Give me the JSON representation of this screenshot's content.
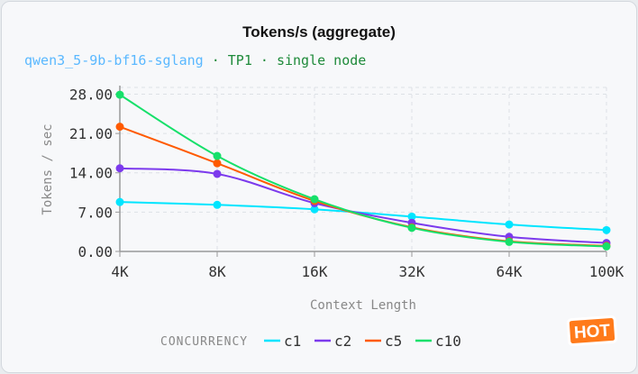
{
  "header": {
    "title": "Tokens/s (aggregate)",
    "model": "qwen3_5-9b-bf16-sglang",
    "separator": " · ",
    "config": "TP1 · single node"
  },
  "chart_data": {
    "type": "line",
    "title": "Tokens/s (aggregate)",
    "xlabel": "Context Length",
    "ylabel": "Tokens / sec",
    "categories": [
      "4K",
      "8K",
      "16K",
      "32K",
      "64K",
      "100K"
    ],
    "yticks": [
      "0.00",
      "7.00",
      "14.00",
      "21.00",
      "28.00"
    ],
    "ylim": [
      0,
      29.2
    ],
    "grid": true,
    "legend_title": "CONCURRENCY",
    "legend_placement": "bottom",
    "series": [
      {
        "name": "c1",
        "color": "#00e5ff",
        "values": [
          8.8,
          8.3,
          7.5,
          6.2,
          4.8,
          3.8
        ]
      },
      {
        "name": "c2",
        "color": "#7c3aed",
        "values": [
          14.8,
          13.8,
          8.6,
          5.1,
          2.6,
          1.5
        ]
      },
      {
        "name": "c5",
        "color": "#ff5a00",
        "values": [
          22.2,
          15.7,
          9.0,
          4.3,
          1.8,
          1.0
        ]
      },
      {
        "name": "c10",
        "color": "#16e06a",
        "values": [
          27.9,
          17.0,
          9.3,
          4.2,
          1.7,
          0.9
        ]
      }
    ]
  },
  "badge": {
    "text": "HOT"
  }
}
